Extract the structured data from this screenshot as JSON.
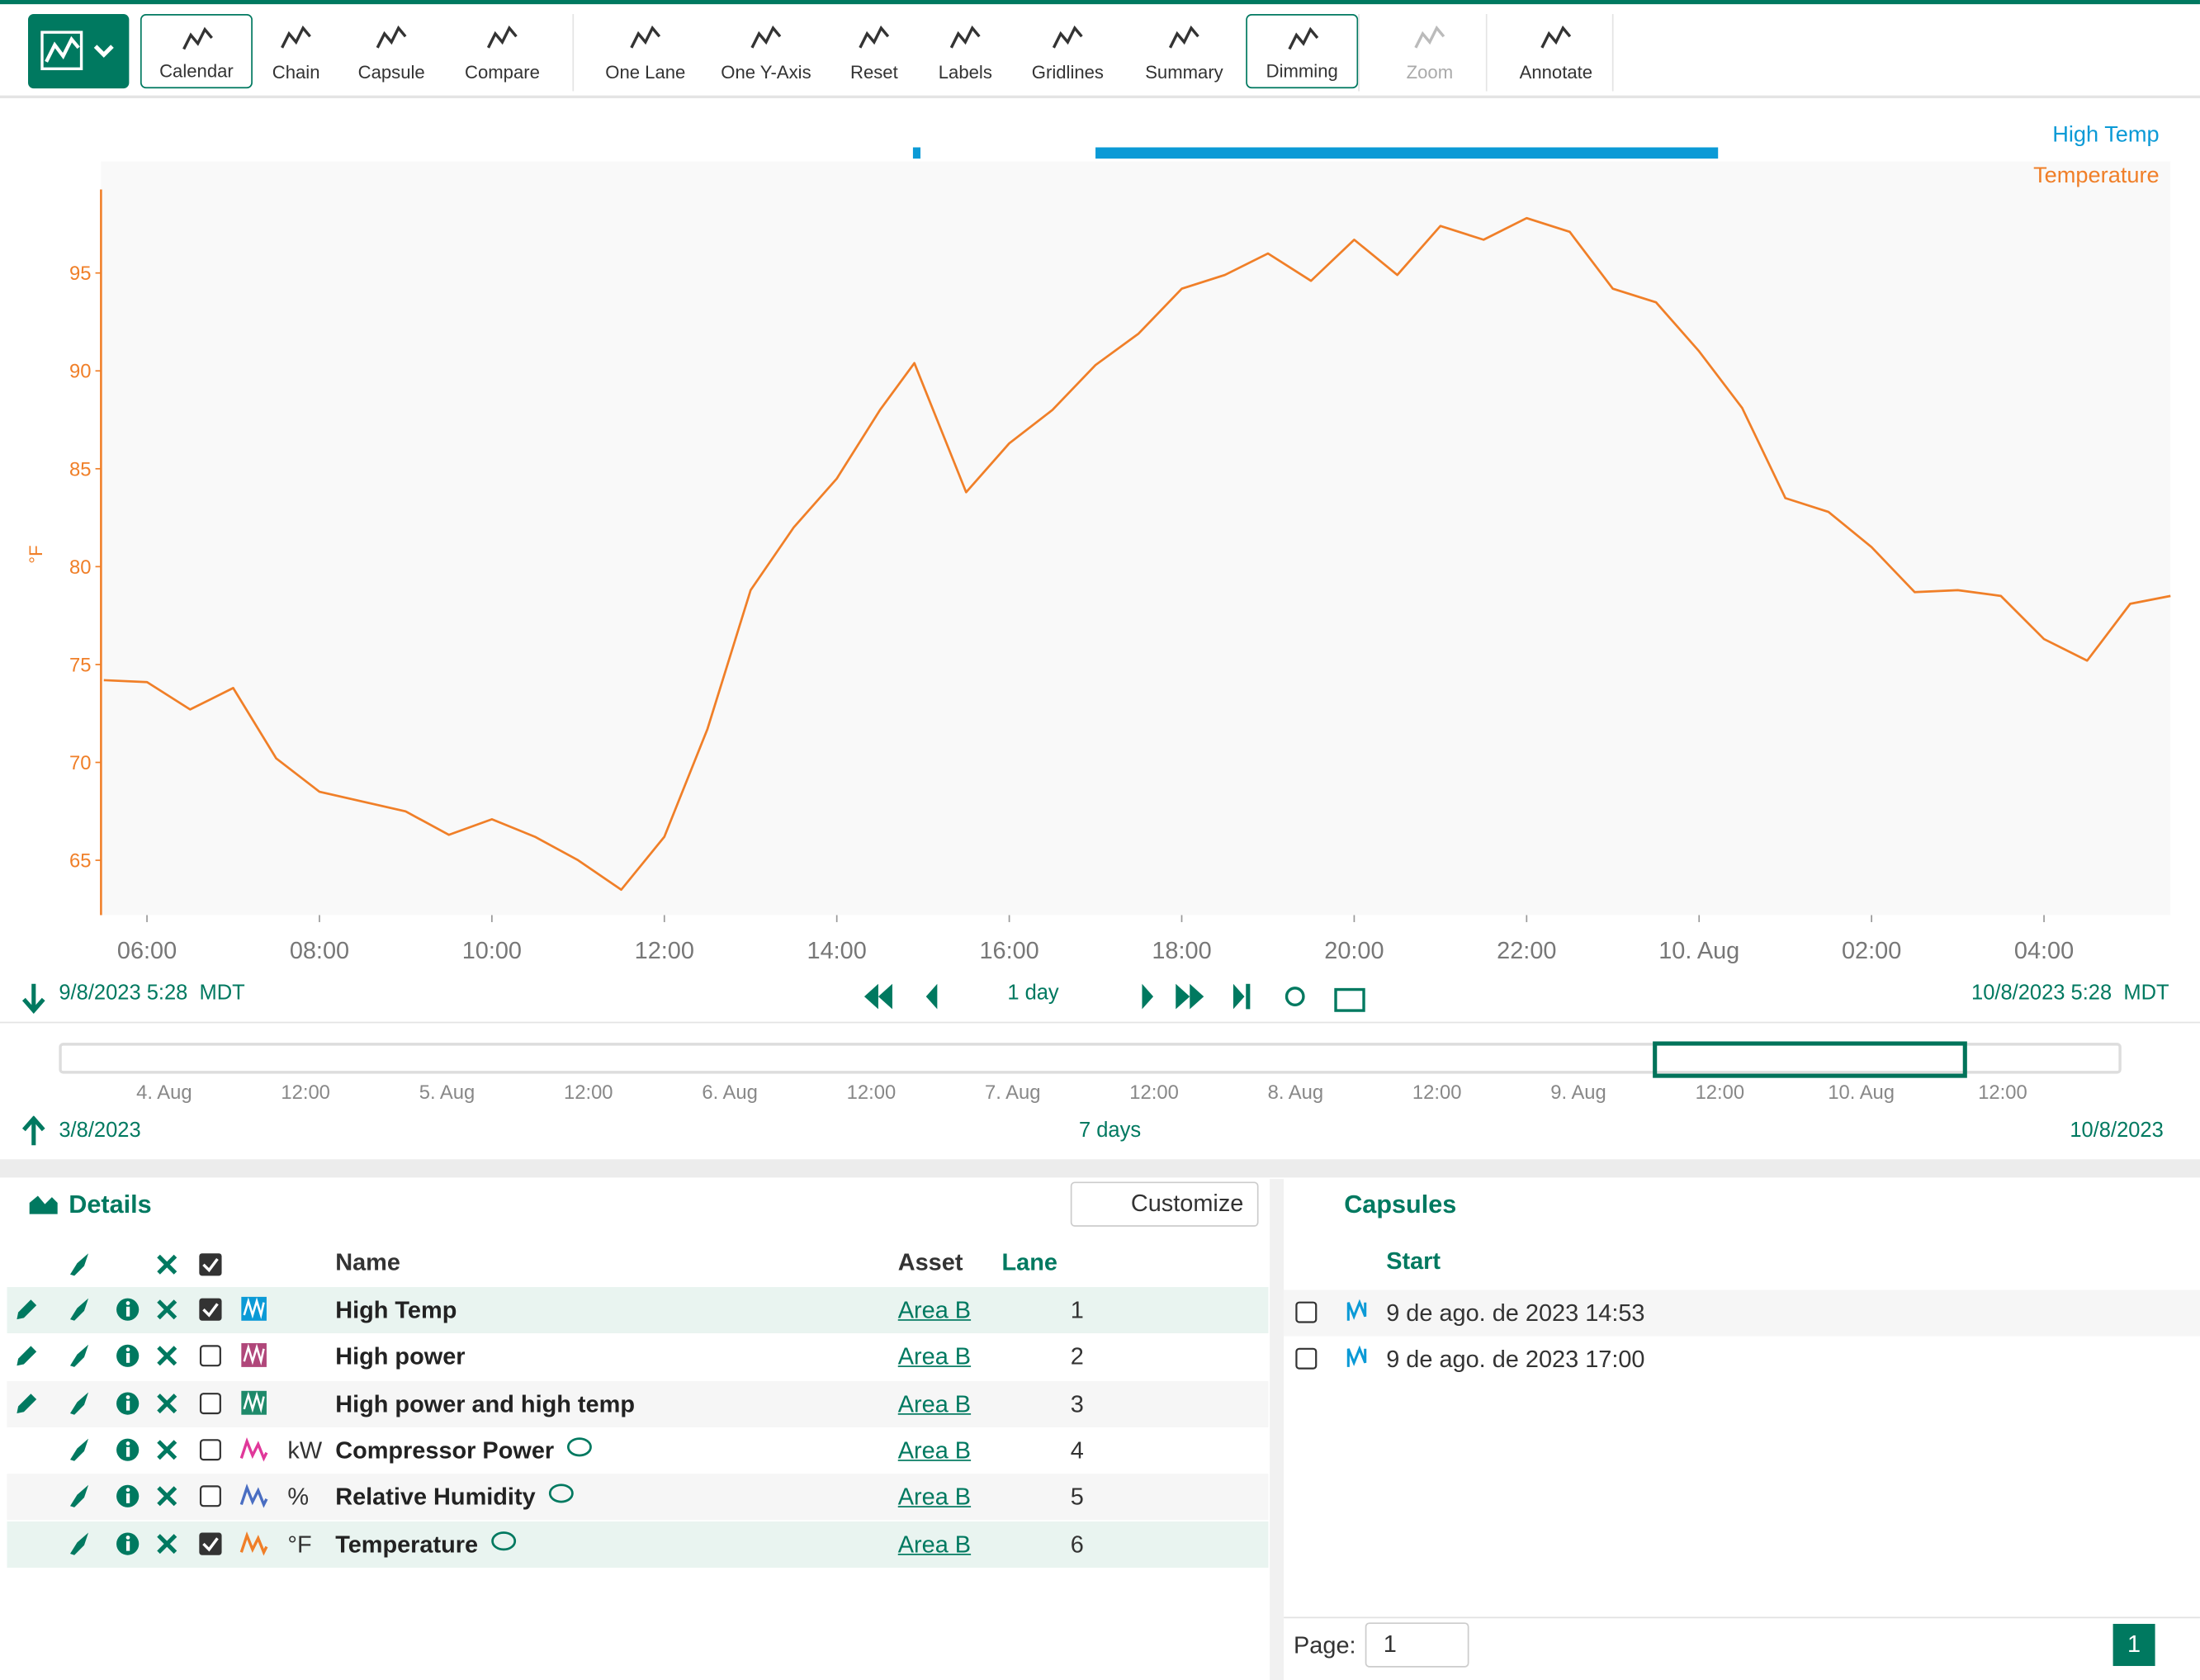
{
  "toolbar": {
    "buttons": [
      "Calendar",
      "Chain",
      "Capsule",
      "Compare",
      "One Lane",
      "One Y-Axis",
      "Reset",
      "Labels",
      "Gridlines",
      "Summary",
      "Dimming",
      "Zoom",
      "Annotate"
    ]
  },
  "chart": {
    "type": "line",
    "y_label": "°F",
    "xlim": [
      5.467,
      29.467
    ],
    "ylim": [
      62.2,
      100.7
    ],
    "yticks": [
      65,
      70,
      75,
      80,
      85,
      90,
      95
    ],
    "xticks": [
      {
        "value": 6,
        "label": "06:00"
      },
      {
        "value": 8,
        "label": "08:00"
      },
      {
        "value": 10,
        "label": "10:00"
      },
      {
        "value": 12,
        "label": "12:00"
      },
      {
        "value": 14,
        "label": "14:00"
      },
      {
        "value": 16,
        "label": "16:00"
      },
      {
        "value": 18,
        "label": "18:00"
      },
      {
        "value": 20,
        "label": "20:00"
      },
      {
        "value": 22,
        "label": "22:00"
      },
      {
        "value": 24,
        "label": "10. Aug"
      },
      {
        "value": 26,
        "label": "02:00"
      },
      {
        "value": 28,
        "label": "04:00"
      }
    ],
    "series": [
      {
        "name": "High Temp",
        "color": "#0b9ad6",
        "capsules": [
          [
            14.883,
            14.97
          ],
          [
            17.0,
            24.22
          ]
        ]
      },
      {
        "name": "Temperature",
        "color": "#f07f28",
        "x": [
          5.5,
          6,
          6.5,
          7,
          7.5,
          8,
          8.5,
          9,
          9.5,
          10,
          10.5,
          11,
          11.5,
          12,
          12.5,
          13,
          13.5,
          14,
          14.5,
          14.9,
          15.5,
          16,
          16.5,
          17,
          17.5,
          18,
          18.5,
          19,
          19.5,
          20,
          20.5,
          21,
          21.5,
          22,
          22.5,
          23,
          23.5,
          24,
          24.5,
          25,
          25.5,
          26,
          26.5,
          27,
          27.5,
          28,
          28.5,
          29,
          29.467
        ],
        "values": [
          74.2,
          74.1,
          72.7,
          73.8,
          70.2,
          68.5,
          68.0,
          67.5,
          66.3,
          67.1,
          66.2,
          65.0,
          63.5,
          66.2,
          71.7,
          78.8,
          82.0,
          84.5,
          88.0,
          90.4,
          83.8,
          86.3,
          88.0,
          90.3,
          91.9,
          94.2,
          94.9,
          96.0,
          94.6,
          96.7,
          94.9,
          97.4,
          96.7,
          97.8,
          97.1,
          94.2,
          93.5,
          91.0,
          88.1,
          83.5,
          82.8,
          81.0,
          78.7,
          78.8,
          78.5,
          76.3,
          75.2,
          78.1,
          78.5
        ]
      }
    ]
  },
  "time_range": {
    "start": "9/8/2023 5:28",
    "timezone": "MDT",
    "duration": "1 day",
    "end": "10/8/2023 5:28"
  },
  "overview": {
    "ticks": [
      "4. Aug",
      "12:00",
      "5. Aug",
      "12:00",
      "6. Aug",
      "12:00",
      "7. Aug",
      "12:00",
      "8. Aug",
      "12:00",
      "9. Aug",
      "12:00",
      "10. Aug",
      "12:00"
    ],
    "start": "3/8/2023",
    "duration": "7 days",
    "end": "10/8/2023"
  },
  "details": {
    "title": "Details",
    "customize": "Customize",
    "columns": {
      "name": "Name",
      "asset": "Asset",
      "lane": "Lane"
    },
    "rows": [
      {
        "name": "High Temp",
        "asset": "Area B",
        "lane": 1,
        "checked": true,
        "editable": true,
        "color": "#0b9ad6",
        "kind": "capsule"
      },
      {
        "name": "High power",
        "asset": "Area B",
        "lane": 2,
        "checked": false,
        "editable": true,
        "color": "#b0477a",
        "kind": "capsule"
      },
      {
        "name": "High power and high temp",
        "asset": "Area B",
        "lane": 3,
        "checked": false,
        "editable": true,
        "color": "#1e8a6a",
        "kind": "capsule"
      },
      {
        "name": "Compressor Power",
        "unit": "kW",
        "asset": "Area B",
        "lane": 4,
        "checked": false,
        "editable": false,
        "color": "#e0389a",
        "kind": "signal",
        "comment": true
      },
      {
        "name": "Relative Humidity",
        "unit": "%",
        "asset": "Area B",
        "lane": 5,
        "checked": false,
        "editable": false,
        "color": "#4a6ec2",
        "kind": "signal",
        "comment": true
      },
      {
        "name": "Temperature",
        "unit": "°F",
        "asset": "Area B",
        "lane": 6,
        "checked": true,
        "editable": false,
        "color": "#f07f28",
        "kind": "signal",
        "comment": true
      }
    ]
  },
  "capsules": {
    "title": "Capsules",
    "start_header": "Start",
    "rows": [
      "9 de ago. de 2023 14:53",
      "9 de ago. de 2023 17:00"
    ],
    "page_label": "Page:",
    "page": 1,
    "current_page": 1
  }
}
